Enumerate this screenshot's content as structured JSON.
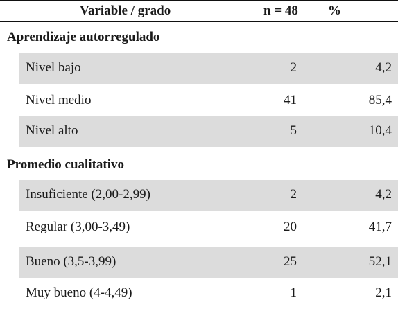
{
  "table": {
    "header": {
      "variable": "Variable / grado",
      "n": "n = 48",
      "pct": "%"
    },
    "sections": [
      {
        "title": "Aprendizaje autorregulado",
        "rows": [
          {
            "label": "Nivel bajo",
            "n": "2",
            "pct": "4,2"
          },
          {
            "label": "Nivel medio",
            "n": "41",
            "pct": "85,4"
          },
          {
            "label": "Nivel alto",
            "n": "5",
            "pct": "10,4"
          }
        ]
      },
      {
        "title": "Promedio cualitativo",
        "rows": [
          {
            "label": "Insuficiente (2,00-2,99)",
            "n": "2",
            "pct": "4,2"
          },
          {
            "label": "Regular (3,00-3,49)",
            "n": "20",
            "pct": "41,7"
          },
          {
            "label": "Bueno (3,5-3,99)",
            "n": "25",
            "pct": "52,1"
          },
          {
            "label": "Muy bueno (4-4,49)",
            "n": "1",
            "pct": "2,1"
          }
        ]
      }
    ],
    "colors": {
      "row_shade": "#dcdcdc",
      "rule": "#111111",
      "text": "#1a1a1a"
    }
  }
}
